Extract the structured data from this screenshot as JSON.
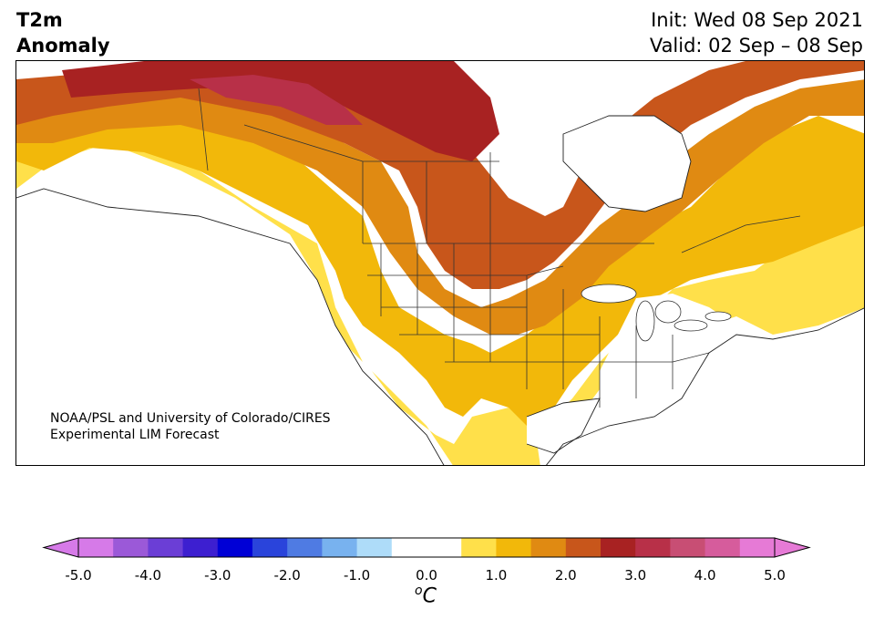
{
  "title": {
    "line1": "T2m",
    "line2": "Anomaly"
  },
  "dates": {
    "init": "Init: Wed 08 Sep 2021",
    "valid": "Valid: 02 Sep – 08 Sep"
  },
  "credit": {
    "line1": "NOAA/PSL and University of Colorado/CIRES",
    "line2": "Experimental LIM Forecast"
  },
  "colorbar": {
    "unit_sup": "o",
    "unit": "C",
    "ticks": [
      "-5.0",
      "-4.0",
      "-3.0",
      "-2.0",
      "-1.0",
      "0.0",
      "1.0",
      "2.0",
      "3.0",
      "4.0",
      "5.0"
    ],
    "colors": [
      "#d67ae8",
      "#9b59d8",
      "#6b3ed6",
      "#3d1fd0",
      "#0000d6",
      "#2a44db",
      "#4f7be3",
      "#78b2ef",
      "#aedcf9",
      "#ffffff",
      "#ffffff",
      "#ffe04a",
      "#f2b80a",
      "#e08a12",
      "#c8561b",
      "#a82222",
      "#b83048",
      "#c84e74",
      "#d65c9c",
      "#e67ad6"
    ],
    "under_color": "#d67ae8",
    "over_color": "#e67ad6"
  },
  "map_colors": {
    "land_neutral": "#ffffff",
    "c1": "#ffe04a",
    "c2": "#f2b80a",
    "c3": "#e08a12",
    "c4": "#c8561b",
    "c5": "#a82222",
    "c6": "#b83048",
    "water": "#ffffff"
  }
}
